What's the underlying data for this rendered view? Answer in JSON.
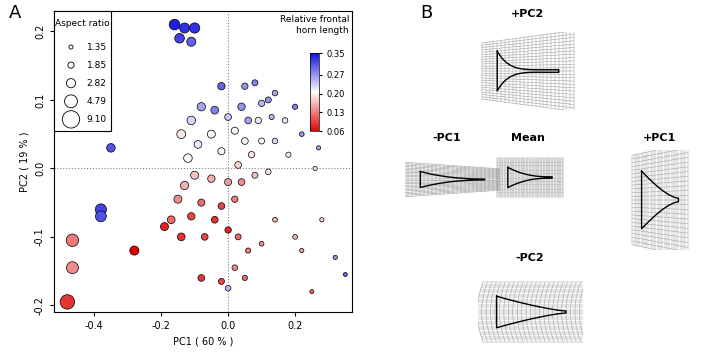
{
  "chart_data": {
    "type": "scatter",
    "panel_label": "A",
    "xlabel": "PC1 ( 60 % )",
    "ylabel": "PC2 ( 19 % )",
    "xlim": [
      -0.52,
      0.37
    ],
    "ylim": [
      -0.21,
      0.23
    ],
    "xticks": [
      -0.4,
      -0.2,
      {
        "value": 0,
        "label": "0.0"
      },
      0.2
    ],
    "yticks": [
      -0.2,
      -0.1,
      {
        "value": 0,
        "label": "0.0"
      },
      0.1,
      0.2
    ],
    "x": [
      -0.16,
      -0.13,
      -0.1,
      -0.145,
      -0.11,
      -0.35,
      -0.38,
      -0.38,
      -0.465,
      -0.465,
      -0.48,
      -0.28,
      -0.02,
      0.05,
      0.08,
      0.12,
      0.14,
      0.1,
      0.04,
      -0.04,
      -0.08,
      -0.11,
      0.0,
      0.06,
      0.09,
      0.13,
      0.17,
      0.02,
      -0.05,
      -0.14,
      -0.09,
      0.05,
      0.1,
      0.14,
      -0.02,
      0.07,
      0.18,
      -0.12,
      0.03,
      -0.1,
      -0.05,
      0.0,
      0.04,
      -0.13,
      0.08,
      0.12,
      -0.15,
      -0.08,
      -0.02,
      0.02,
      -0.11,
      -0.04,
      -0.17,
      0.0,
      -0.07,
      -0.14,
      0.03,
      -0.19,
      0.14,
      0.06,
      0.1,
      -0.08,
      -0.02,
      0.0,
      0.05,
      0.02,
      0.28,
      0.2,
      0.22,
      0.25,
      0.32,
      0.35,
      0.26,
      0.22,
      0.2,
      0.27
    ],
    "y": [
      0.21,
      0.205,
      0.205,
      0.19,
      0.185,
      0.03,
      -0.06,
      -0.07,
      -0.105,
      -0.145,
      -0.195,
      -0.12,
      0.12,
      0.12,
      0.125,
      0.1,
      0.11,
      0.095,
      0.09,
      0.085,
      0.09,
      0.07,
      0.075,
      0.07,
      0.07,
      0.075,
      0.07,
      0.055,
      0.05,
      0.05,
      0.035,
      0.04,
      0.04,
      0.04,
      0.025,
      0.02,
      0.02,
      0.015,
      0.005,
      -0.01,
      -0.015,
      -0.02,
      -0.02,
      -0.025,
      -0.01,
      -0.005,
      -0.045,
      -0.05,
      -0.055,
      -0.045,
      -0.07,
      -0.075,
      -0.075,
      -0.09,
      -0.1,
      -0.1,
      -0.1,
      -0.085,
      -0.075,
      -0.12,
      -0.11,
      -0.16,
      -0.165,
      -0.175,
      -0.16,
      -0.145,
      -0.075,
      -0.1,
      -0.12,
      -0.18,
      -0.13,
      -0.155,
      0.0,
      0.05,
      0.09,
      0.03
    ],
    "aspect_ratio": [
      3.5,
      3.2,
      3.3,
      3.0,
      2.8,
      2.6,
      3.8,
      3.6,
      4.5,
      4.2,
      6.0,
      2.8,
      2.2,
      1.9,
      1.8,
      1.8,
      1.7,
      1.9,
      2.2,
      2.3,
      2.5,
      2.6,
      2.0,
      2.0,
      1.9,
      1.6,
      1.7,
      2.1,
      2.4,
      2.7,
      2.3,
      2.0,
      1.8,
      1.7,
      2.1,
      1.9,
      1.6,
      2.6,
      2.0,
      2.4,
      2.2,
      2.1,
      2.0,
      2.5,
      1.8,
      1.7,
      2.4,
      2.1,
      2.0,
      1.9,
      2.2,
      2.0,
      2.3,
      1.9,
      2.0,
      2.3,
      1.8,
      2.4,
      1.5,
      1.6,
      1.5,
      2.0,
      1.8,
      1.7,
      1.6,
      1.7,
      1.4,
      1.5,
      1.4,
      1.35,
      1.4,
      1.35,
      1.4,
      1.5,
      1.6,
      1.4
    ],
    "relative_frontal_horn_length": [
      0.34,
      0.33,
      0.33,
      0.32,
      0.3,
      0.31,
      0.32,
      0.31,
      0.13,
      0.14,
      0.09,
      0.06,
      0.3,
      0.27,
      0.28,
      0.27,
      0.26,
      0.25,
      0.27,
      0.28,
      0.26,
      0.23,
      0.24,
      0.26,
      0.22,
      0.25,
      0.22,
      0.21,
      0.2,
      0.19,
      0.22,
      0.2,
      0.21,
      0.23,
      0.2,
      0.19,
      0.21,
      0.21,
      0.18,
      0.17,
      0.16,
      0.15,
      0.14,
      0.16,
      0.17,
      0.19,
      0.14,
      0.12,
      0.1,
      0.13,
      0.1,
      0.09,
      0.12,
      0.08,
      0.1,
      0.09,
      0.12,
      0.08,
      0.16,
      0.13,
      0.14,
      0.09,
      0.1,
      0.25,
      0.12,
      0.14,
      0.18,
      0.16,
      0.15,
      0.12,
      0.27,
      0.3,
      0.22,
      0.27,
      0.28,
      0.26
    ],
    "size_legend": {
      "title": "Aspect ratio",
      "values": [
        1.35,
        1.85,
        2.82,
        4.79,
        {
          "value": 9.1,
          "label": "9.10"
        }
      ]
    },
    "colorbar": {
      "title": "Relative frontal\nhorn length",
      "range": [
        0.06,
        0.35
      ],
      "ticks": [
        0.35,
        0.27,
        {
          "value": 0.2,
          "label": "0.20"
        },
        0.13,
        0.06
      ]
    }
  },
  "shape_panel": {
    "panel_label": "B",
    "labels": [
      "+PC2",
      "-PC1",
      "Mean",
      "+PC1",
      "-PC2"
    ]
  }
}
